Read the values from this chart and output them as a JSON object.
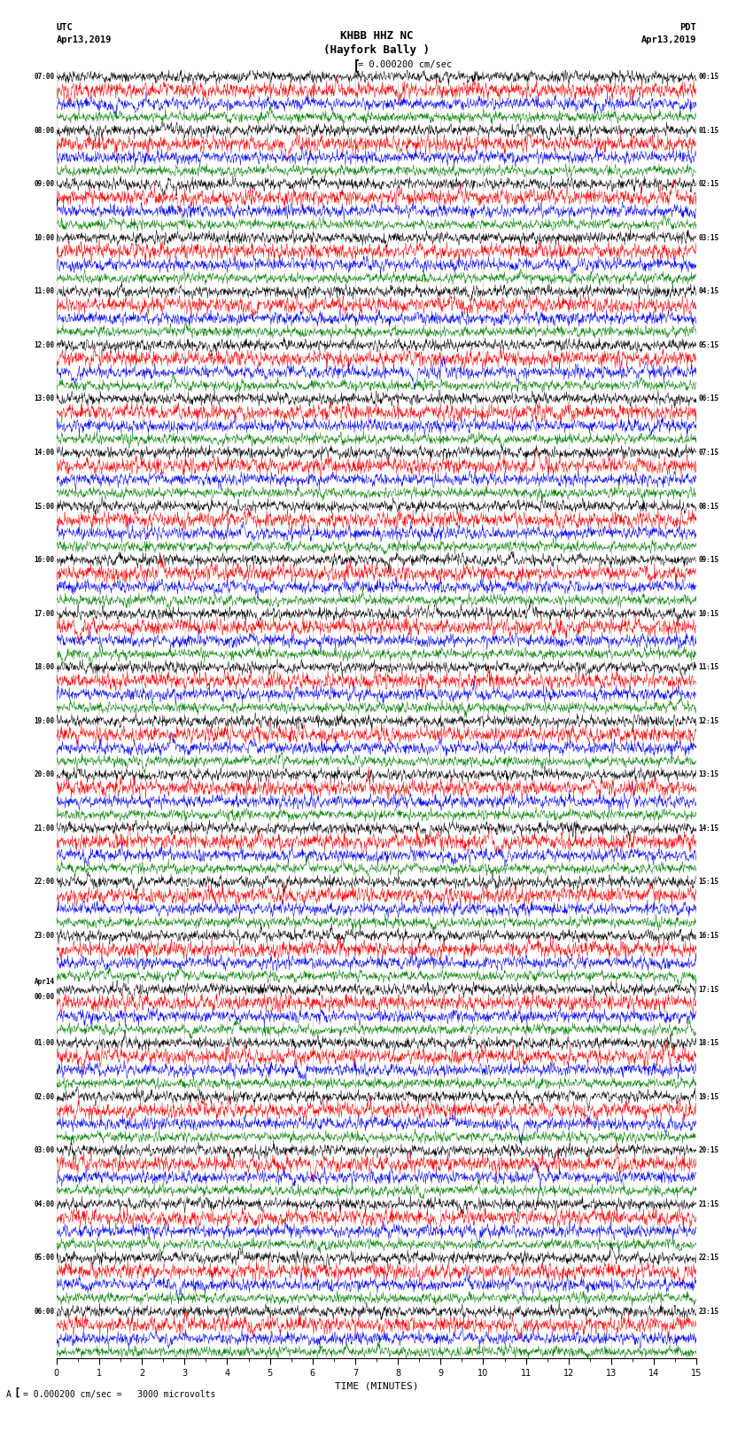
{
  "title_line1": "KHBB HHZ NC",
  "title_line2": "(Hayfork Bally )",
  "scale_label": "= 0.000200 cm/sec",
  "bottom_label": "= 0.000200 cm/sec =   3000 microvolts",
  "xlabel": "TIME (MINUTES)",
  "left_header_line1": "UTC",
  "left_header_line2": "Apr13,2019",
  "right_header_line1": "PDT",
  "right_header_line2": "Apr13,2019",
  "background_color": "#ffffff",
  "trace_colors": [
    "#000000",
    "#ff0000",
    "#0000ff",
    "#008000"
  ],
  "utc_labels": [
    "07:00",
    "08:00",
    "09:00",
    "10:00",
    "11:00",
    "12:00",
    "13:00",
    "14:00",
    "15:00",
    "16:00",
    "17:00",
    "18:00",
    "19:00",
    "20:00",
    "21:00",
    "22:00",
    "23:00",
    "Apr14\n00:00",
    "01:00",
    "02:00",
    "03:00",
    "04:00",
    "05:00",
    "06:00"
  ],
  "pdt_labels": [
    "00:15",
    "01:15",
    "02:15",
    "03:15",
    "04:15",
    "05:15",
    "06:15",
    "07:15",
    "08:15",
    "09:15",
    "10:15",
    "11:15",
    "12:15",
    "13:15",
    "14:15",
    "15:15",
    "16:15",
    "17:15",
    "18:15",
    "19:15",
    "20:15",
    "21:15",
    "22:15",
    "23:15"
  ],
  "n_hour_groups": 24,
  "traces_per_group": 4,
  "xmin": 0,
  "xmax": 15,
  "xticks": [
    0,
    1,
    2,
    3,
    4,
    5,
    6,
    7,
    8,
    9,
    10,
    11,
    12,
    13,
    14,
    15
  ],
  "fig_width": 8.5,
  "fig_height": 16.13,
  "dpi": 100
}
